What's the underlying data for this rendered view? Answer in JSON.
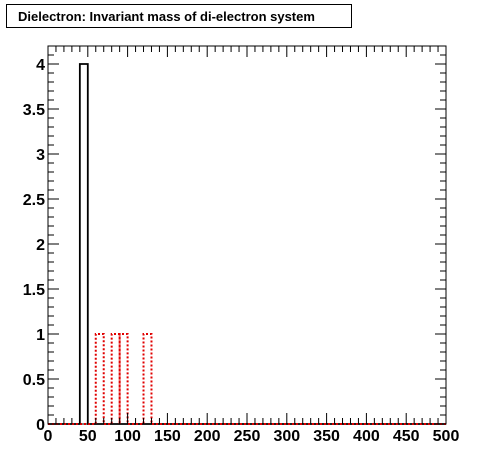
{
  "chart_data": {
    "type": "bar",
    "title": "Dielectron: Invariant mass of di-electron system",
    "xlabel": "",
    "ylabel": "",
    "xlim": [
      0,
      500
    ],
    "ylim": [
      0,
      4.2
    ],
    "grid": false,
    "bin_width": 10,
    "x_ticks": [
      "0",
      "50",
      "100",
      "150",
      "200",
      "250",
      "300",
      "350",
      "400",
      "450",
      "500"
    ],
    "y_ticks": [
      "0",
      "0.5",
      "1",
      "1.5",
      "2",
      "2.5",
      "3",
      "3.5",
      "4"
    ],
    "series": [
      {
        "style": "solid",
        "color": "#000000",
        "bins": [
          {
            "x0": 40,
            "x1": 50,
            "value": 4
          }
        ]
      },
      {
        "style": "dotted",
        "color": "#e00000",
        "bins": [
          {
            "x0": 60,
            "x1": 70,
            "value": 1
          },
          {
            "x0": 80,
            "x1": 90,
            "value": 1
          },
          {
            "x0": 90,
            "x1": 100,
            "value": 1
          },
          {
            "x0": 120,
            "x1": 130,
            "value": 1
          }
        ]
      }
    ]
  }
}
